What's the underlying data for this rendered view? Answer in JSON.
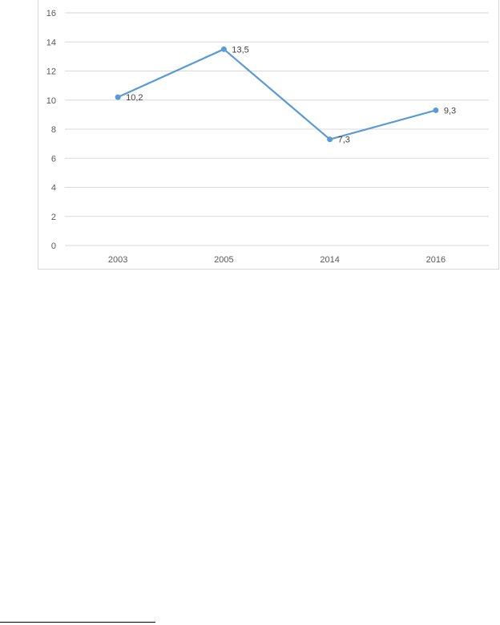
{
  "chart_data": {
    "type": "line",
    "categories": [
      "2003",
      "2005",
      "2014",
      "2016"
    ],
    "series": [
      {
        "values": [
          10.2,
          13.5,
          7.3,
          9.3
        ],
        "data_labels": [
          "10,2",
          "13,5",
          "7,3",
          "9,3"
        ]
      }
    ],
    "ylim": [
      0,
      16
    ],
    "yticks": [
      0,
      2,
      4,
      6,
      8,
      10,
      12,
      14,
      16
    ],
    "grid": true,
    "legend": "none",
    "colors": {
      "line": "#5b9bd5",
      "grid": "#d9d9d9",
      "frame": "#d9d9d9"
    }
  }
}
